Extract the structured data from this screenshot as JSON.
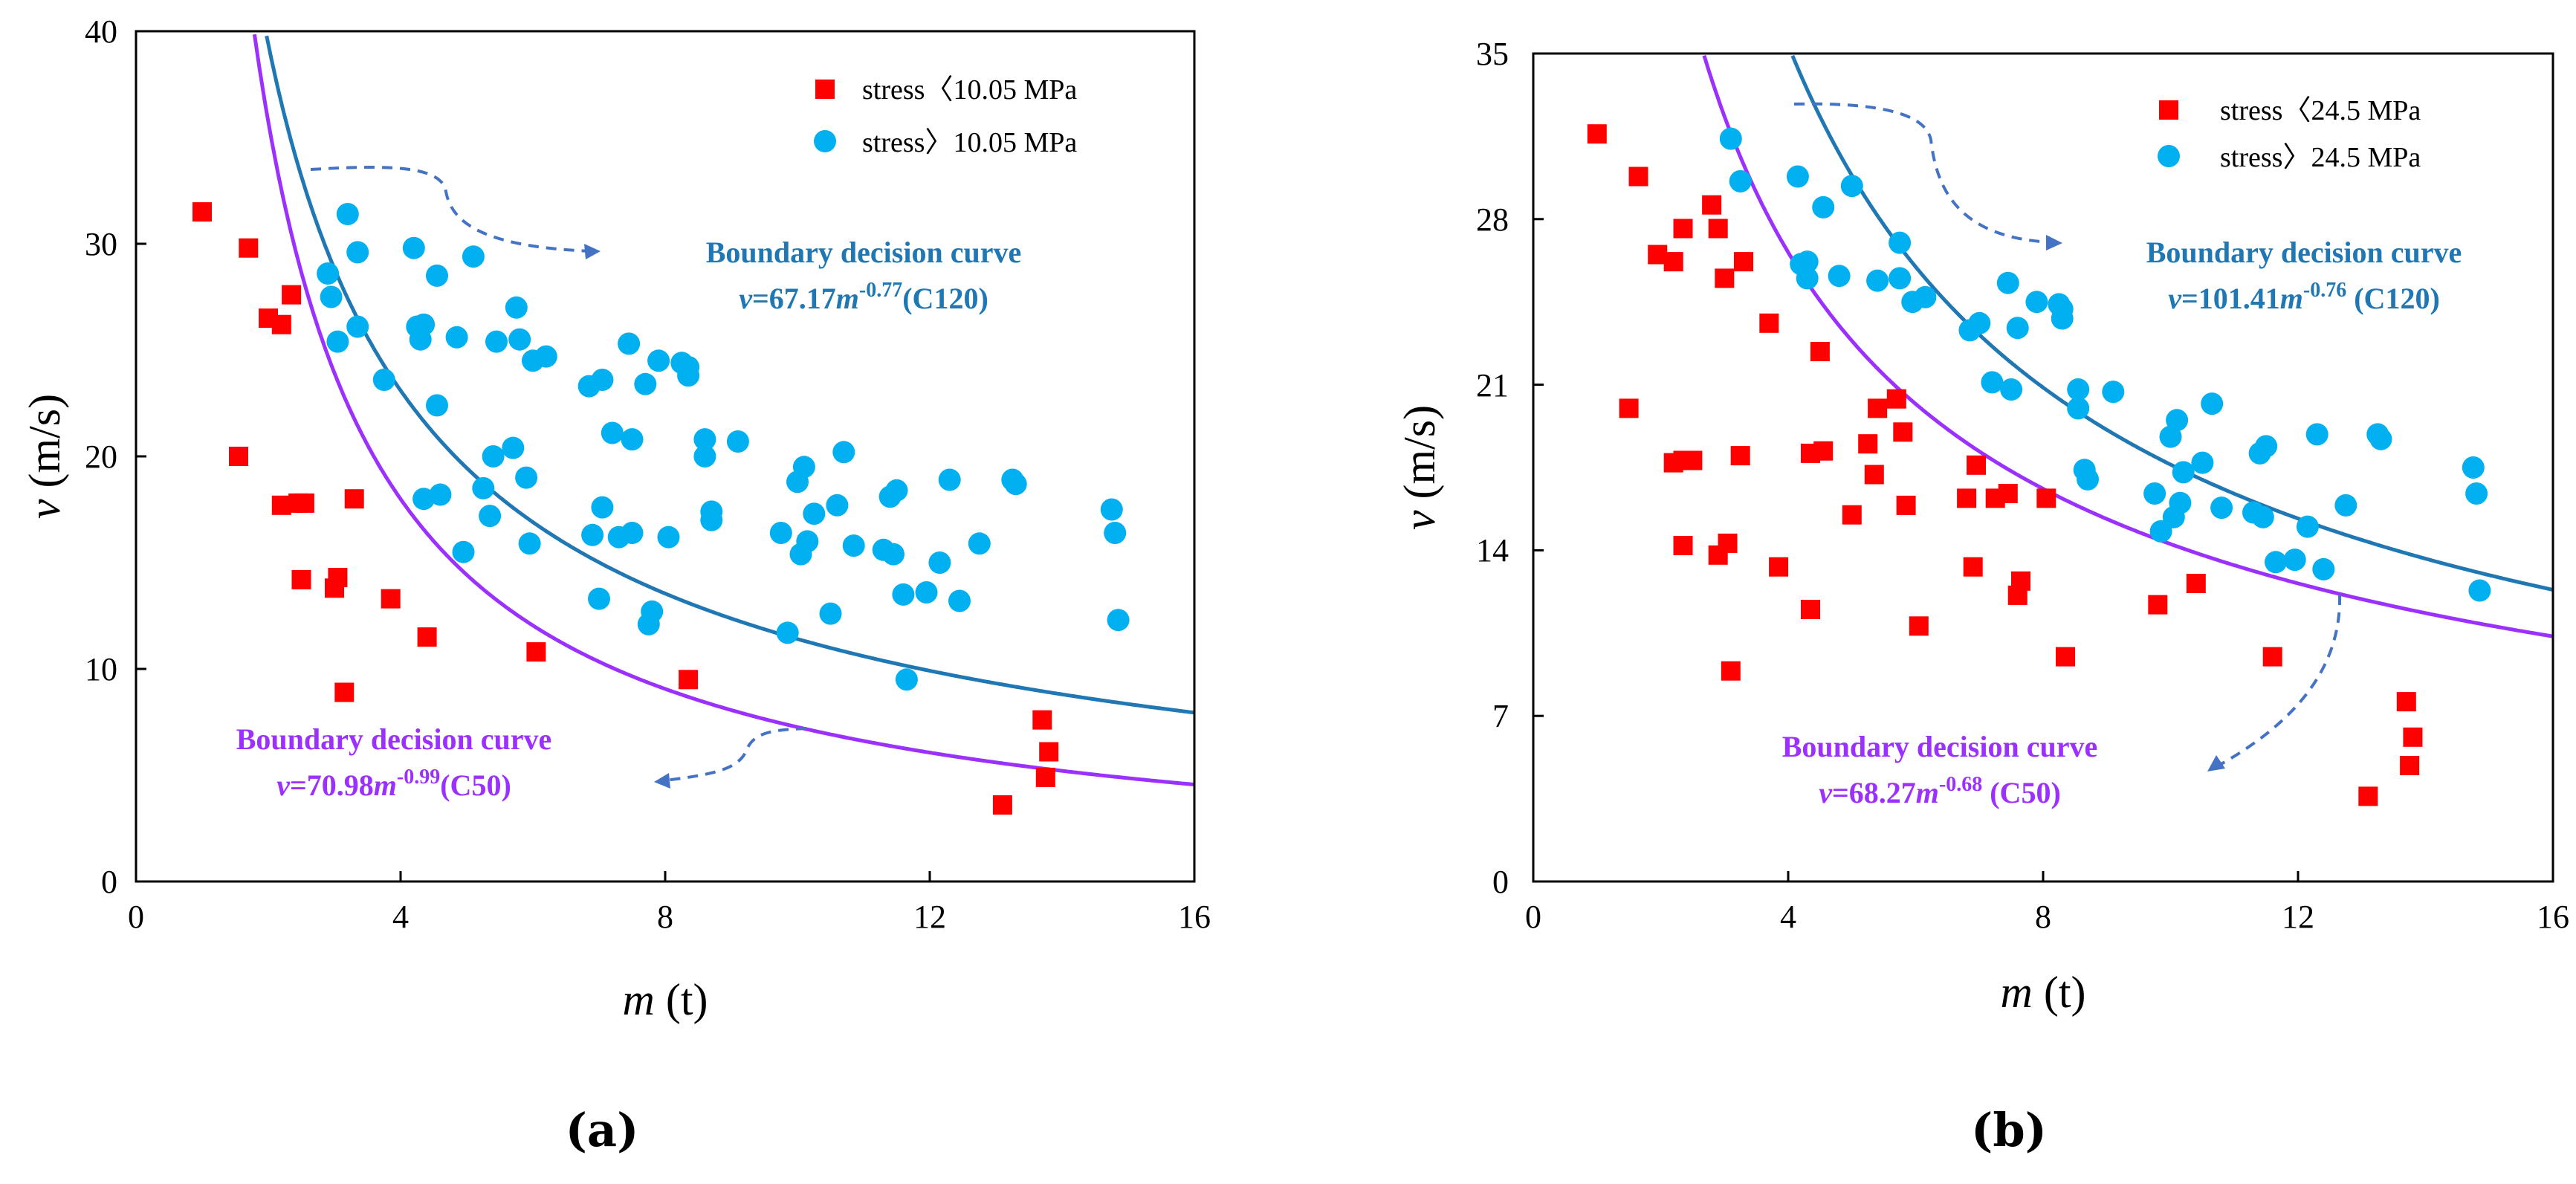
{
  "chart_data": [
    {
      "panel_label": "(a)",
      "type": "scatter",
      "xlabel_var": "m",
      "xlabel_unit": " (t)",
      "ylabel_var": "v",
      "ylabel_unit": " (m/s)",
      "xlim": [
        0,
        16
      ],
      "ylim": [
        0,
        40
      ],
      "xticks": [
        "0",
        "4",
        "8",
        "12",
        "16"
      ],
      "yticks": [
        "0",
        "10",
        "20",
        "30",
        "40"
      ],
      "grid": false,
      "legend_position": "top-right",
      "series": [
        {
          "name": "stress〈10.05 MPa",
          "marker": "square",
          "color": "#ff0000",
          "points": [
            [
              1.0,
              31.5
            ],
            [
              1.7,
              29.8
            ],
            [
              2.0,
              26.5
            ],
            [
              2.2,
              26.2
            ],
            [
              2.35,
              27.6
            ],
            [
              1.55,
              20.0
            ],
            [
              2.2,
              17.7
            ],
            [
              2.45,
              17.8
            ],
            [
              2.55,
              17.8
            ],
            [
              2.5,
              14.2
            ],
            [
              3.0,
              13.8
            ],
            [
              3.05,
              14.3
            ],
            [
              3.3,
              18.0
            ],
            [
              3.85,
              13.3
            ],
            [
              3.15,
              8.9
            ],
            [
              4.4,
              11.5
            ],
            [
              6.05,
              10.8
            ],
            [
              8.35,
              9.5
            ],
            [
              13.7,
              7.6
            ],
            [
              13.8,
              6.1
            ],
            [
              13.75,
              4.9
            ],
            [
              13.1,
              3.6
            ]
          ]
        },
        {
          "name": "stress〉10.05 MPa",
          "marker": "circle",
          "color": "#00b0f0",
          "points": [
            [
              2.9,
              28.6
            ],
            [
              2.95,
              27.5
            ],
            [
              3.05,
              25.4
            ],
            [
              3.2,
              31.4
            ],
            [
              3.35,
              29.6
            ],
            [
              3.35,
              26.1
            ],
            [
              3.75,
              23.6
            ],
            [
              4.2,
              29.8
            ],
            [
              4.25,
              26.1
            ],
            [
              4.3,
              25.5
            ],
            [
              4.35,
              26.2
            ],
            [
              4.35,
              18.0
            ],
            [
              4.55,
              28.5
            ],
            [
              4.55,
              22.4
            ],
            [
              4.6,
              18.2
            ],
            [
              4.85,
              25.6
            ],
            [
              4.95,
              15.5
            ],
            [
              5.1,
              29.4
            ],
            [
              5.25,
              18.5
            ],
            [
              5.35,
              17.2
            ],
            [
              5.4,
              20.0
            ],
            [
              5.45,
              25.4
            ],
            [
              5.7,
              20.4
            ],
            [
              5.75,
              27.0
            ],
            [
              5.8,
              25.5
            ],
            [
              5.95,
              15.9
            ],
            [
              6.0,
              24.5
            ],
            [
              6.2,
              24.7
            ],
            [
              5.9,
              19.0
            ],
            [
              6.85,
              23.3
            ],
            [
              6.9,
              16.3
            ],
            [
              7.0,
              13.3
            ],
            [
              7.05,
              23.6
            ],
            [
              7.05,
              17.6
            ],
            [
              7.2,
              21.1
            ],
            [
              7.3,
              16.2
            ],
            [
              7.45,
              25.3
            ],
            [
              7.5,
              16.4
            ],
            [
              7.5,
              20.8
            ],
            [
              7.7,
              23.4
            ],
            [
              7.75,
              12.1
            ],
            [
              7.8,
              12.7
            ],
            [
              7.9,
              24.5
            ],
            [
              8.05,
              16.2
            ],
            [
              8.25,
              24.4
            ],
            [
              8.35,
              23.8
            ],
            [
              8.35,
              24.2
            ],
            [
              8.6,
              20.0
            ],
            [
              8.6,
              20.8
            ],
            [
              8.7,
              17.4
            ],
            [
              8.7,
              17.0
            ],
            [
              9.1,
              20.7
            ],
            [
              9.75,
              16.4
            ],
            [
              9.85,
              11.7
            ],
            [
              10.0,
              18.8
            ],
            [
              10.05,
              15.4
            ],
            [
              10.1,
              19.5
            ],
            [
              10.15,
              16.0
            ],
            [
              10.25,
              17.3
            ],
            [
              10.5,
              12.6
            ],
            [
              10.6,
              17.7
            ],
            [
              10.7,
              20.2
            ],
            [
              10.85,
              15.8
            ],
            [
              11.3,
              15.6
            ],
            [
              11.4,
              18.1
            ],
            [
              11.45,
              15.4
            ],
            [
              11.5,
              18.4
            ],
            [
              11.6,
              13.5
            ],
            [
              11.65,
              9.5
            ],
            [
              11.95,
              13.6
            ],
            [
              12.15,
              15.0
            ],
            [
              12.3,
              18.9
            ],
            [
              12.45,
              13.2
            ],
            [
              12.75,
              15.9
            ],
            [
              13.25,
              18.9
            ],
            [
              13.3,
              18.7
            ],
            [
              14.75,
              17.5
            ],
            [
              14.8,
              16.4
            ],
            [
              14.85,
              12.3
            ]
          ]
        }
      ],
      "curves": [
        {
          "name": "C120",
          "a": 67.17,
          "b": -0.77,
          "color": "#1f77b4"
        },
        {
          "name": "C50",
          "a": 70.98,
          "b": -0.99,
          "color": "#9b30ff"
        }
      ],
      "annotations": [
        {
          "title": "Boundary decision curve",
          "eq_var": "v",
          "eq_mid": "=67.17",
          "eq_var2": "m",
          "eq_exp": "-0.77",
          "eq_tail": "(C120)",
          "color": "#1f77b4"
        },
        {
          "title": "Boundary decision curve",
          "eq_var": "v",
          "eq_mid": "=70.98",
          "eq_var2": "m",
          "eq_exp": "-0.99",
          "eq_tail": "(C50)",
          "color": "#9b30ff"
        }
      ]
    },
    {
      "panel_label": "(b)",
      "type": "scatter",
      "xlabel_var": "m",
      "xlabel_unit": " (t)",
      "ylabel_var": "v",
      "ylabel_unit": " (m/s)",
      "xlim": [
        0,
        16
      ],
      "ylim": [
        0,
        35
      ],
      "xticks": [
        "0",
        "4",
        "8",
        "12",
        "16"
      ],
      "yticks": [
        "0",
        "7",
        "14",
        "21",
        "28",
        "35"
      ],
      "grid": false,
      "legend_position": "top-right",
      "series": [
        {
          "name": "stress〈24.5 MPa",
          "marker": "square",
          "color": "#ff0000",
          "points": [
            [
              1.0,
              31.6
            ],
            [
              1.65,
              29.8
            ],
            [
              1.95,
              26.5
            ],
            [
              2.2,
              26.2
            ],
            [
              2.35,
              27.6
            ],
            [
              2.8,
              28.6
            ],
            [
              2.9,
              27.6
            ],
            [
              3.0,
              25.5
            ],
            [
              3.3,
              26.2
            ],
            [
              1.5,
              20.0
            ],
            [
              2.2,
              17.7
            ],
            [
              2.35,
              17.8
            ],
            [
              2.5,
              17.8
            ],
            [
              2.35,
              14.2
            ],
            [
              2.9,
              13.8
            ],
            [
              3.05,
              14.3
            ],
            [
              3.25,
              18.0
            ],
            [
              3.7,
              23.6
            ],
            [
              3.85,
              13.3
            ],
            [
              3.1,
              8.9
            ],
            [
              4.35,
              11.5
            ],
            [
              4.35,
              18.1
            ],
            [
              4.5,
              22.4
            ],
            [
              4.55,
              18.2
            ],
            [
              5.0,
              15.5
            ],
            [
              5.25,
              18.5
            ],
            [
              5.35,
              17.2
            ],
            [
              5.4,
              20.0
            ],
            [
              5.7,
              20.4
            ],
            [
              5.8,
              19.0
            ],
            [
              5.85,
              15.9
            ],
            [
              6.05,
              10.8
            ],
            [
              6.8,
              16.2
            ],
            [
              6.9,
              13.3
            ],
            [
              6.95,
              17.6
            ],
            [
              7.25,
              16.2
            ],
            [
              7.45,
              16.4
            ],
            [
              7.6,
              12.1
            ],
            [
              7.65,
              12.7
            ],
            [
              8.05,
              16.2
            ],
            [
              8.35,
              9.5
            ],
            [
              9.8,
              11.7
            ],
            [
              10.4,
              12.6
            ],
            [
              11.6,
              9.5
            ],
            [
              13.1,
              3.6
            ],
            [
              13.7,
              7.6
            ],
            [
              13.8,
              6.1
            ],
            [
              13.75,
              4.9
            ]
          ]
        },
        {
          "name": "stress〉24.5 MPa",
          "marker": "circle",
          "color": "#00b0f0",
          "points": [
            [
              3.1,
              31.4
            ],
            [
              3.25,
              29.6
            ],
            [
              4.15,
              29.8
            ],
            [
              4.2,
              26.1
            ],
            [
              4.3,
              26.2
            ],
            [
              4.3,
              25.5
            ],
            [
              4.55,
              28.5
            ],
            [
              4.8,
              25.6
            ],
            [
              5.0,
              29.4
            ],
            [
              5.4,
              25.4
            ],
            [
              5.75,
              27.0
            ],
            [
              5.75,
              25.5
            ],
            [
              5.95,
              24.5
            ],
            [
              6.15,
              24.7
            ],
            [
              6.85,
              23.3
            ],
            [
              7.0,
              23.6
            ],
            [
              7.2,
              21.1
            ],
            [
              7.45,
              25.3
            ],
            [
              7.5,
              20.8
            ],
            [
              7.6,
              23.4
            ],
            [
              7.9,
              24.5
            ],
            [
              8.25,
              24.4
            ],
            [
              8.3,
              23.8
            ],
            [
              8.3,
              24.2
            ],
            [
              8.55,
              20.0
            ],
            [
              8.55,
              20.8
            ],
            [
              8.65,
              17.4
            ],
            [
              8.7,
              17.0
            ],
            [
              9.1,
              20.7
            ],
            [
              9.75,
              16.4
            ],
            [
              9.85,
              14.8
            ],
            [
              10.0,
              18.8
            ],
            [
              10.05,
              15.4
            ],
            [
              10.1,
              19.5
            ],
            [
              10.15,
              16.0
            ],
            [
              10.2,
              17.3
            ],
            [
              10.5,
              17.7
            ],
            [
              10.65,
              20.2
            ],
            [
              10.8,
              15.8
            ],
            [
              11.3,
              15.6
            ],
            [
              11.4,
              18.1
            ],
            [
              11.45,
              15.4
            ],
            [
              11.5,
              18.4
            ],
            [
              11.65,
              13.5
            ],
            [
              11.95,
              13.6
            ],
            [
              12.15,
              15.0
            ],
            [
              12.3,
              18.9
            ],
            [
              12.4,
              13.2
            ],
            [
              12.75,
              15.9
            ],
            [
              13.25,
              18.9
            ],
            [
              13.3,
              18.7
            ],
            [
              14.75,
              17.5
            ],
            [
              14.8,
              16.4
            ],
            [
              14.85,
              12.3
            ]
          ]
        }
      ],
      "curves": [
        {
          "name": "C120",
          "a": 101.41,
          "b": -0.76,
          "color": "#1f77b4"
        },
        {
          "name": "C50",
          "a": 68.27,
          "b": -0.68,
          "color": "#9b30ff"
        }
      ],
      "annotations": [
        {
          "title": "Boundary decision curve",
          "eq_var": "v",
          "eq_mid": "=101.41",
          "eq_var2": "m",
          "eq_exp": "-0.76",
          "eq_tail": " (C120)",
          "color": "#1f77b4"
        },
        {
          "title": "Boundary decision curve",
          "eq_var": "v",
          "eq_mid": "=68.27",
          "eq_var2": "m",
          "eq_exp": "-0.68",
          "eq_tail": " (C50)",
          "color": "#9b30ff"
        }
      ]
    }
  ],
  "colors": {
    "axis": "#000000",
    "arrow": "#4472c4"
  }
}
